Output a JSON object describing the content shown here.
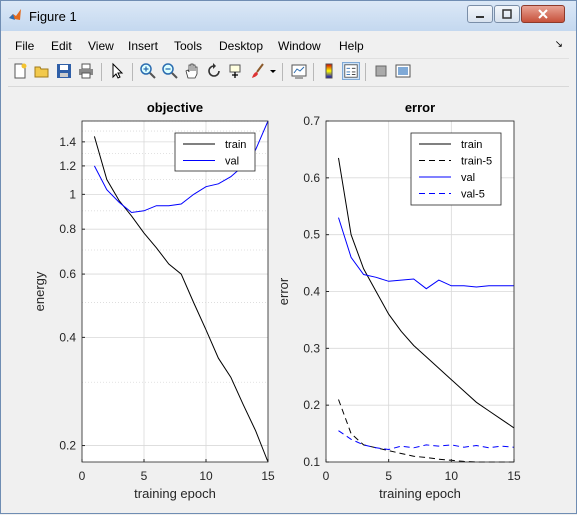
{
  "window": {
    "title": "Figure 1"
  },
  "menu": [
    "File",
    "Edit",
    "View",
    "Insert",
    "Tools",
    "Desktop",
    "Window",
    "Help"
  ],
  "toolbar_icons": [
    "new-figure-icon",
    "open-file-icon",
    "save-icon",
    "print-icon",
    "edit-plot-arrow-icon",
    "zoom-in-icon",
    "zoom-out-icon",
    "pan-hand-icon",
    "rotate-3d-icon",
    "data-cursor-icon",
    "brush-icon",
    "link-plot-icon",
    "colorbar-icon",
    "legend-icon",
    "hide-plot-tools-icon",
    "show-plot-tools-icon"
  ],
  "colors": {
    "train": "#000000",
    "val": "#0000ff",
    "grid": "#d9d9d9"
  },
  "chart_data": [
    {
      "type": "line",
      "title": "objective",
      "xlabel": "training epoch",
      "ylabel": "energy",
      "yscale": "log",
      "xlim": [
        0,
        15
      ],
      "ylim": [
        0.18,
        1.6
      ],
      "xticks": [
        0,
        5,
        10,
        15
      ],
      "yticks": [
        0.2,
        0.4,
        0.6,
        0.8,
        1,
        1.2,
        1.4
      ],
      "ytick_labels": [
        "0.2",
        "0.4",
        "0.6",
        "0.8",
        "1",
        "1.2",
        "1.4"
      ],
      "grid": true,
      "legend": "top-right",
      "series": [
        {
          "name": "train",
          "style": "solid",
          "color": "#000000",
          "x": [
            1,
            2,
            3,
            4,
            5,
            6,
            7,
            8,
            9,
            10,
            11,
            12,
            13,
            14,
            15
          ],
          "y": [
            1.45,
            1.1,
            0.96,
            0.87,
            0.78,
            0.71,
            0.64,
            0.6,
            0.5,
            0.42,
            0.35,
            0.31,
            0.26,
            0.22,
            0.18
          ]
        },
        {
          "name": "val",
          "style": "solid",
          "color": "#0000ff",
          "x": [
            1,
            2,
            3,
            4,
            5,
            6,
            7,
            8,
            9,
            10,
            11,
            12,
            13,
            14,
            15
          ],
          "y": [
            1.2,
            1.03,
            0.95,
            0.89,
            0.9,
            0.93,
            0.93,
            0.94,
            1.0,
            1.05,
            1.07,
            1.12,
            1.2,
            1.33,
            1.6
          ]
        }
      ]
    },
    {
      "type": "line",
      "title": "error",
      "xlabel": "training epoch",
      "ylabel": "error",
      "xlim": [
        0,
        15
      ],
      "ylim": [
        0.1,
        0.7
      ],
      "xticks": [
        0,
        5,
        10,
        15
      ],
      "yticks": [
        0.1,
        0.2,
        0.3,
        0.4,
        0.5,
        0.6,
        0.7
      ],
      "ytick_labels": [
        "0.1",
        "0.2",
        "0.3",
        "0.4",
        "0.5",
        "0.6",
        "0.7"
      ],
      "grid": true,
      "legend": "top-right",
      "series": [
        {
          "name": "train",
          "style": "solid",
          "color": "#000000",
          "x": [
            1,
            2,
            3,
            4,
            5,
            6,
            7,
            8,
            9,
            10,
            11,
            12,
            13,
            14,
            15
          ],
          "y": [
            0.635,
            0.5,
            0.44,
            0.4,
            0.36,
            0.33,
            0.305,
            0.285,
            0.265,
            0.245,
            0.225,
            0.205,
            0.19,
            0.175,
            0.16
          ]
        },
        {
          "name": "train-5",
          "style": "dashed",
          "color": "#000000",
          "x": [
            1,
            2,
            3,
            4,
            5,
            6,
            7,
            8,
            9,
            10,
            11,
            12,
            13,
            14,
            15
          ],
          "y": [
            0.21,
            0.15,
            0.13,
            0.125,
            0.12,
            0.115,
            0.11,
            0.108,
            0.105,
            0.103,
            0.101,
            0.1,
            0.1,
            0.1,
            0.1
          ]
        },
        {
          "name": "val",
          "style": "solid",
          "color": "#0000ff",
          "x": [
            1,
            2,
            3,
            4,
            5,
            6,
            7,
            8,
            9,
            10,
            11,
            12,
            13,
            14,
            15
          ],
          "y": [
            0.53,
            0.46,
            0.43,
            0.425,
            0.418,
            0.42,
            0.422,
            0.405,
            0.42,
            0.41,
            0.41,
            0.408,
            0.41,
            0.41,
            0.41
          ]
        },
        {
          "name": "val-5",
          "style": "dashed",
          "color": "#0000ff",
          "x": [
            1,
            2,
            3,
            4,
            5,
            6,
            7,
            8,
            9,
            10,
            11,
            12,
            13,
            14,
            15
          ],
          "y": [
            0.155,
            0.14,
            0.13,
            0.125,
            0.122,
            0.128,
            0.125,
            0.13,
            0.128,
            0.13,
            0.126,
            0.129,
            0.125,
            0.128,
            0.126
          ]
        }
      ]
    }
  ]
}
